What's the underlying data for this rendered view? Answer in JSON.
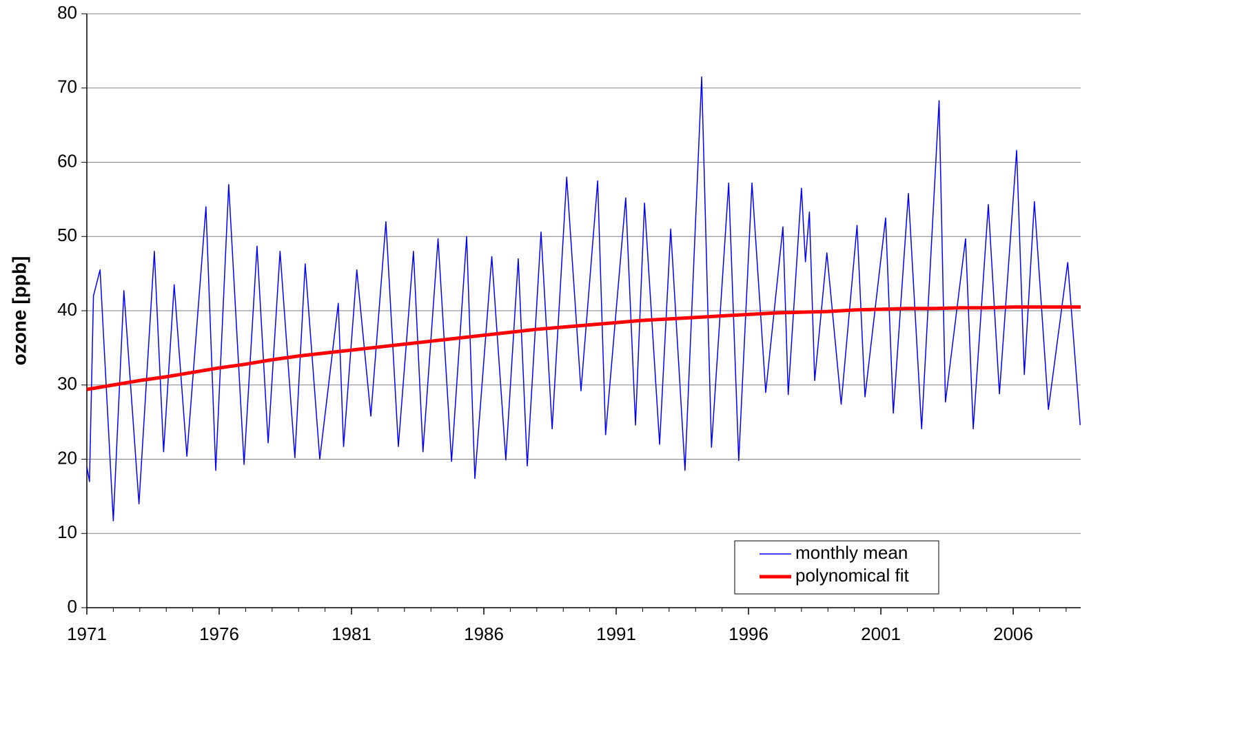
{
  "chart_data": {
    "type": "line",
    "ylabel": "ozone [ppb]",
    "xlim": [
      1971,
      2008.55
    ],
    "ylim": [
      0,
      80
    ],
    "yticks": [
      0,
      10,
      20,
      30,
      40,
      50,
      60,
      70,
      80
    ],
    "xticks": [
      1971,
      1976,
      1981,
      1986,
      1991,
      1996,
      2001,
      2006
    ],
    "xminorticks": [
      1971,
      1972,
      1973,
      1974,
      1975,
      1976,
      1977,
      1978,
      1979,
      1980,
      1981,
      1982,
      1983,
      1984,
      1985,
      1986,
      1987,
      1988,
      1989,
      1990,
      1991,
      1992,
      1993,
      1994,
      1995,
      1996,
      1997,
      1998,
      1999,
      2000,
      2001,
      2002,
      2003,
      2004,
      2005,
      2006,
      2007,
      2008
    ],
    "grid": true,
    "legend": "lower right",
    "series": [
      {
        "name": "monthly mean",
        "color": "#0000ff",
        "width": 1.5,
        "x": [
          1971.0,
          1971.1,
          1971.25,
          1971.5,
          1972.0,
          1972.4,
          1972.97,
          1973.55,
          1973.9,
          1974.3,
          1974.78,
          1975.5,
          1975.87,
          1976.36,
          1976.94,
          1977.43,
          1977.85,
          1978.3,
          1978.86,
          1979.25,
          1979.8,
          1980.5,
          1980.7,
          1981.2,
          1981.73,
          1982.3,
          1982.77,
          1983.34,
          1983.7,
          1984.27,
          1984.78,
          1985.35,
          1985.66,
          1986.3,
          1986.83,
          1987.3,
          1987.64,
          1988.16,
          1988.58,
          1989.13,
          1989.67,
          1990.3,
          1990.6,
          1991.36,
          1991.73,
          1992.07,
          1992.64,
          1993.06,
          1993.6,
          1994.23,
          1994.6,
          1995.25,
          1995.63,
          1996.13,
          1996.65,
          1997.3,
          1997.5,
          1998.0,
          1998.15,
          1998.3,
          1998.5,
          1998.96,
          1999.5,
          2000.1,
          2000.4,
          2001.18,
          2001.47,
          2002.04,
          2002.54,
          2003.2,
          2003.44,
          2004.2,
          2004.49,
          2005.06,
          2005.48,
          2006.13,
          2006.42,
          2006.8,
          2007.33,
          2008.06,
          2008.53
        ],
        "values": [
          19,
          17,
          42,
          45.5,
          11.7,
          42.7,
          14,
          48,
          21,
          43.5,
          20.4,
          54,
          18.5,
          57,
          19.3,
          48.7,
          22.2,
          48,
          20.2,
          46.3,
          20,
          41,
          21.7,
          45.5,
          25.8,
          52,
          21.7,
          48,
          21,
          49.7,
          19.7,
          50,
          17.4,
          47.3,
          19.9,
          47,
          19.1,
          50.6,
          24.1,
          58,
          29.2,
          57.5,
          23.3,
          55.2,
          24.6,
          54.5,
          22,
          51,
          18.5,
          71.5,
          21.6,
          57.2,
          19.8,
          57.2,
          29,
          51.3,
          28.7,
          56.5,
          46.6,
          53.3,
          30.6,
          47.8,
          27.4,
          51.5,
          28.4,
          52.5,
          26.2,
          55.8,
          24.1,
          68.3,
          27.7,
          49.7,
          24.1,
          54.3,
          28.8,
          61.6,
          31.4,
          54.7,
          26.7,
          46.5,
          24.6
        ]
      },
      {
        "name": "polynomical fit",
        "color": "#ff0000",
        "width": 5,
        "x": [
          1971,
          1972,
          1973,
          1974,
          1975,
          1976,
          1977,
          1978,
          1979,
          1980,
          1981,
          1982,
          1983,
          1984,
          1985,
          1986,
          1987,
          1988,
          1989,
          1990,
          1991,
          1992,
          1993,
          1994,
          1995,
          1996,
          1997,
          1998,
          1999,
          2000,
          2001,
          2002,
          2003,
          2004,
          2005,
          2006,
          2007,
          2008.55
        ],
        "values": [
          29.4,
          30.0,
          30.6,
          31.1,
          31.7,
          32.3,
          32.8,
          33.4,
          33.9,
          34.3,
          34.7,
          35.1,
          35.5,
          35.9,
          36.3,
          36.7,
          37.1,
          37.5,
          37.8,
          38.1,
          38.4,
          38.7,
          38.9,
          39.1,
          39.3,
          39.5,
          39.7,
          39.8,
          39.9,
          40.1,
          40.2,
          40.3,
          40.3,
          40.4,
          40.4,
          40.5,
          40.5,
          40.5
        ]
      }
    ]
  }
}
